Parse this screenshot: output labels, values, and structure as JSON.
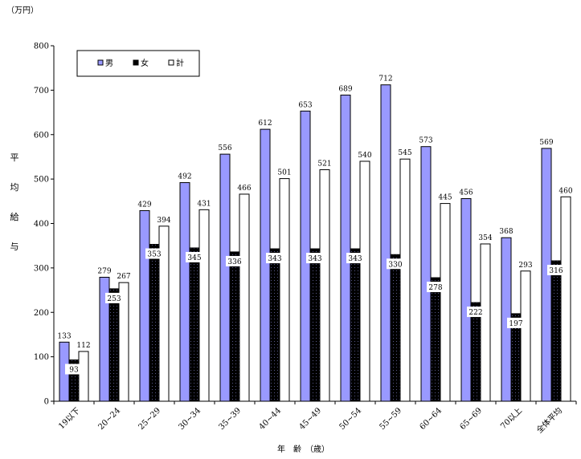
{
  "chart_data": {
    "type": "bar",
    "unit_label": "（万円）",
    "ylabel": "平均給与",
    "xlabel": "年　齢　（歳）",
    "ylim": [
      0,
      800
    ],
    "yticks": [
      0,
      100,
      200,
      300,
      400,
      500,
      600,
      700,
      800
    ],
    "grid": false,
    "legend_position": "top-left",
    "categories": [
      "19以下",
      "20~24",
      "25~29",
      "30~34",
      "35~39",
      "40~44",
      "45~49",
      "50~54",
      "55~59",
      "60~64",
      "65~69",
      "70以上",
      "全体平均"
    ],
    "series": [
      {
        "name": "男",
        "color": "#9999ff",
        "values": [
          133,
          279,
          429,
          492,
          556,
          612,
          653,
          689,
          712,
          573,
          456,
          368,
          569
        ]
      },
      {
        "name": "女",
        "color": "#000000",
        "values": [
          93,
          253,
          353,
          345,
          336,
          343,
          343,
          343,
          330,
          278,
          222,
          197,
          316
        ]
      },
      {
        "name": "計",
        "color": "#ffffff",
        "values": [
          112,
          267,
          394,
          431,
          466,
          501,
          521,
          540,
          545,
          445,
          354,
          293,
          460
        ]
      }
    ]
  }
}
